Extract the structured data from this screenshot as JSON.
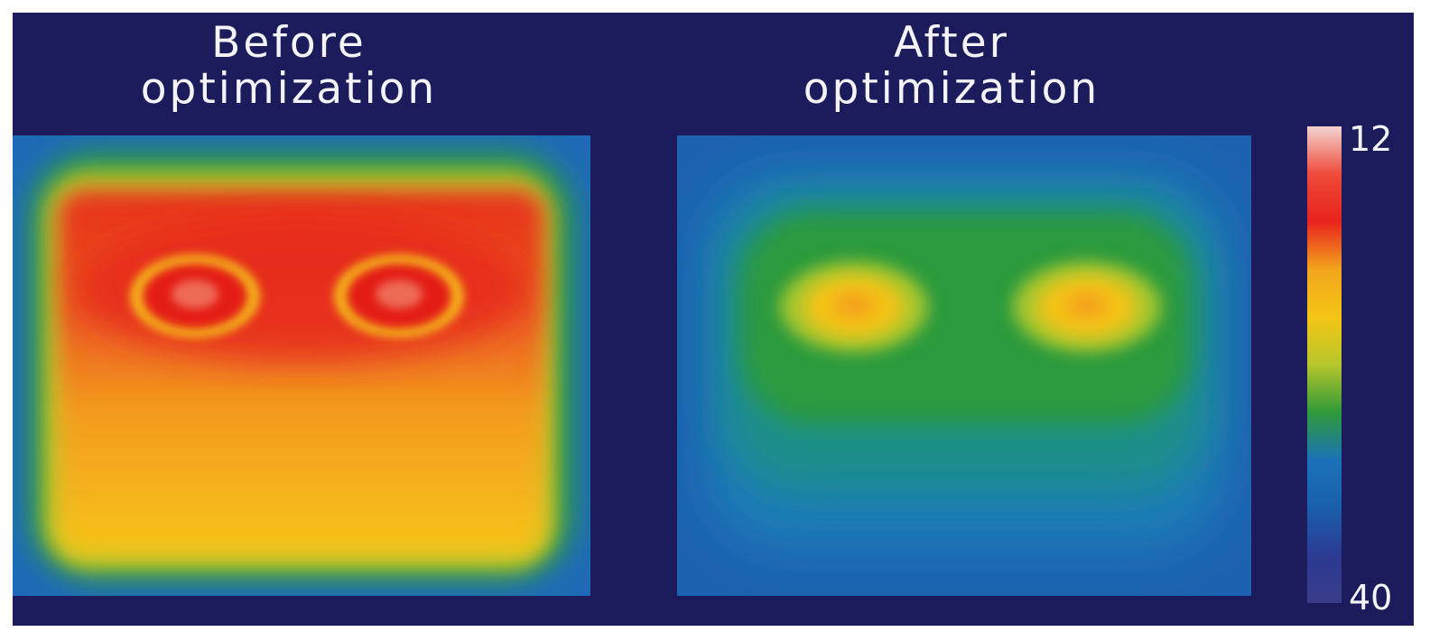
{
  "panels": {
    "before": {
      "title_line1": "Before",
      "title_line2": "optimization"
    },
    "after": {
      "title_line1": "After",
      "title_line2": "optimization"
    }
  },
  "colorbar": {
    "max_label": "12",
    "min_label": "40",
    "colors": [
      "#f3d3d0",
      "#ef4b3a",
      "#e8231d",
      "#f2a51d",
      "#f4c515",
      "#b6c62b",
      "#2f9a3a",
      "#1b72b8",
      "#1a5fac",
      "#2b3a93",
      "#3a3c8a"
    ]
  },
  "colors": {
    "background": "#1c1b5b",
    "hot": "#e8321e",
    "warm": "#f4b71b",
    "mid": "#2a9a3c",
    "cool": "#1f69b8"
  }
}
